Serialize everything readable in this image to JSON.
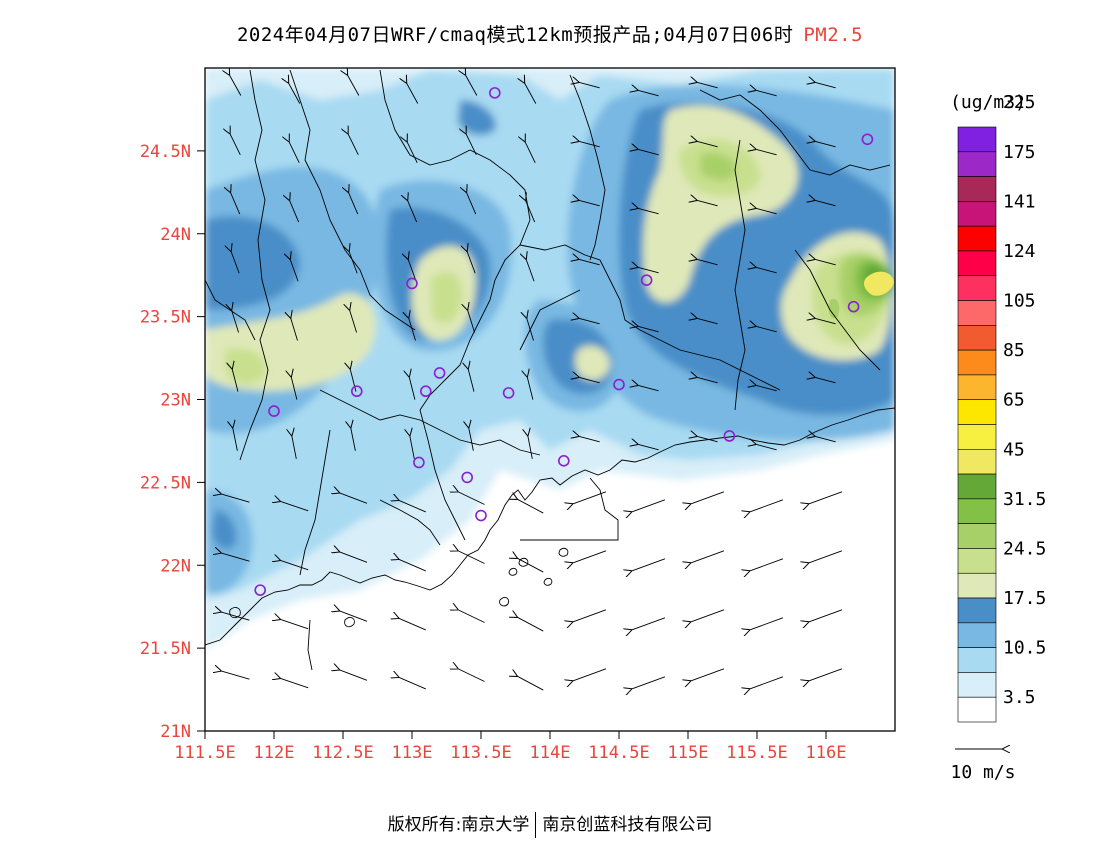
{
  "title": {
    "text": "2024年04月07日WRF/cmaq模式12km预报产品;04月07日06时",
    "pollutant": "PM2.5"
  },
  "map": {
    "lon_range": [
      111.5,
      116.5
    ],
    "lat_range": [
      21.0,
      25.0
    ],
    "lon_ticks": [
      "111.5E",
      "112E",
      "112.5E",
      "113E",
      "113.5E",
      "114E",
      "114.5E",
      "115E",
      "115.5E",
      "116E"
    ],
    "lat_ticks": [
      "21N",
      "21.5N",
      "22N",
      "22.5N",
      "23N",
      "23.5N",
      "24N",
      "24.5N"
    ],
    "tick_label_color": "#e8453c",
    "stations": [
      {
        "lon": 113.6,
        "lat": 24.85
      },
      {
        "lon": 116.3,
        "lat": 24.57
      },
      {
        "lon": 113.0,
        "lat": 23.7
      },
      {
        "lon": 114.7,
        "lat": 23.72
      },
      {
        "lon": 116.2,
        "lat": 23.56
      },
      {
        "lon": 113.2,
        "lat": 23.16
      },
      {
        "lon": 112.6,
        "lat": 23.05
      },
      {
        "lon": 113.1,
        "lat": 23.05
      },
      {
        "lon": 113.7,
        "lat": 23.04
      },
      {
        "lon": 114.5,
        "lat": 23.09
      },
      {
        "lon": 112.0,
        "lat": 22.93
      },
      {
        "lon": 115.3,
        "lat": 22.78
      },
      {
        "lon": 113.05,
        "lat": 22.62
      },
      {
        "lon": 113.4,
        "lat": 22.53
      },
      {
        "lon": 114.1,
        "lat": 22.63
      },
      {
        "lon": 113.5,
        "lat": 22.3
      },
      {
        "lon": 111.9,
        "lat": 21.85
      }
    ]
  },
  "legend": {
    "unit": "(ug/m3)",
    "colors": [
      "#ffffff",
      "#d8eef8",
      "#a8daf2",
      "#78b8e2",
      "#4a8ec8",
      "#dfe8b8",
      "#c8e08e",
      "#a8d068",
      "#82c048",
      "#64a838",
      "#f0e860",
      "#f8f040",
      "#fde700",
      "#fdb52e",
      "#fd8b1c",
      "#f25a30",
      "#fd6868",
      "#fd3060",
      "#fd0048",
      "#fd0000",
      "#c81478",
      "#a82858",
      "#9d28c8",
      "#8020e0"
    ],
    "labels": [
      "3.5",
      "10.5",
      "17.5",
      "24.5",
      "31.5",
      "45",
      "65",
      "85",
      "105",
      "124",
      "141",
      "175",
      "225"
    ],
    "wind_ref_label": "10 m/s"
  },
  "footer": {
    "left": "版权所有:南京大学",
    "right": "南京创蓝科技有限公司"
  }
}
